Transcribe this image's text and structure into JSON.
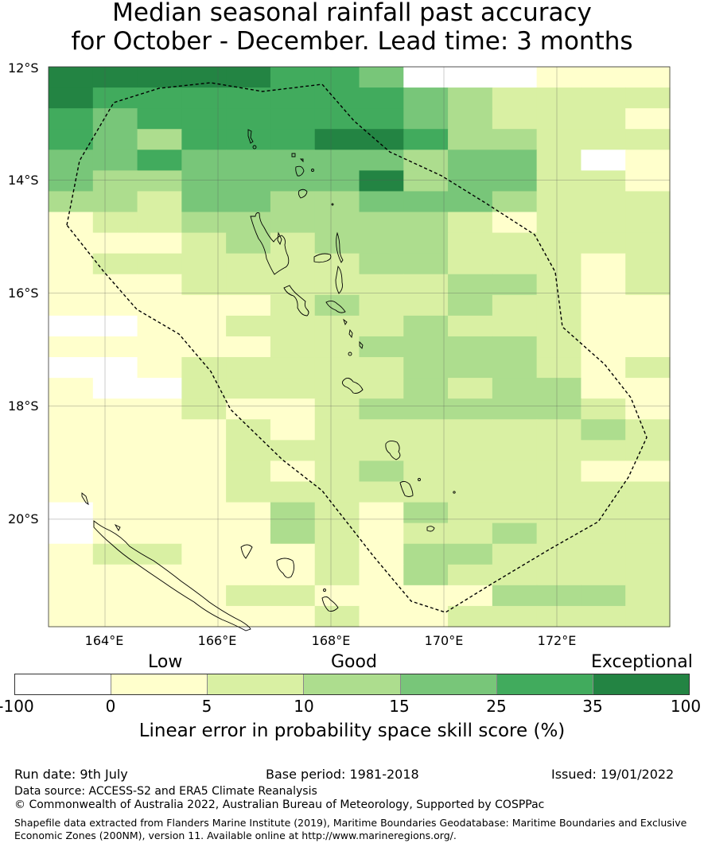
{
  "title_line1": "Median seasonal rainfall past accuracy",
  "title_line2": "for October - December. Lead time: 3 months",
  "lat_labels": [
    "12°S",
    "14°S",
    "16°S",
    "18°S",
    "20°S"
  ],
  "lon_labels": [
    "164°E",
    "166°E",
    "168°E",
    "170°E",
    "172°E"
  ],
  "legend": {
    "categories": [
      "Low",
      "Good",
      "Exceptional"
    ],
    "ticks": [
      "-100",
      "0",
      "5",
      "10",
      "15",
      "25",
      "35",
      "100"
    ],
    "colors": [
      "#ffffff",
      "#ffffcc",
      "#d9f0a3",
      "#addd8e",
      "#78c679",
      "#41ab5d",
      "#238443"
    ],
    "label": "Linear error in probability space skill score (%)"
  },
  "grid": {
    "lon_range": [
      163,
      174
    ],
    "lat_range": [
      -21.9,
      -12
    ],
    "cell_size_deg": 0.5556,
    "rows": [
      "66666554000111",
      "65555555432222",
      "54555555432221",
      "54355566533222",
      "44544444344201",
      "43344446344221",
      "33244334443222",
      "12233333321222",
      "11123233322222",
      "12222223322212",
      "11122222233212",
      "11111232232211",
      "00112222322211",
      "11111223333211",
      "00122222333212",
      "10022222323311",
      "11121123333321",
      "11112122222232",
      "11112222222222",
      "11112123222211",
      "11112222222222",
      "01111321322222",
      "01111321223222",
      "12211121332222",
      "11111121322222",
      "11112211113332",
      "11111121122222"
    ]
  },
  "footer": {
    "run_date": "Run date: 9th July",
    "base_period": "Base period: 1981-2018",
    "issued": "Issued: 19/01/2022",
    "data_source": "Data source: ACCESS-S2 and ERA5 Climate Reanalysis",
    "copyright": "© Commonwealth of Australia 2022, Australian Bureau of Meteorology, Supported by COSPPac",
    "shapefile_line1": "Shapefile data extracted from Flanders Marine Institute (2019), Maritime Boundaries Geodatabase: Maritime Boundaries and Exclusive",
    "shapefile_line2": "Economic Zones (200NM), version 11. Available online at http://www.marineregions.org/."
  }
}
